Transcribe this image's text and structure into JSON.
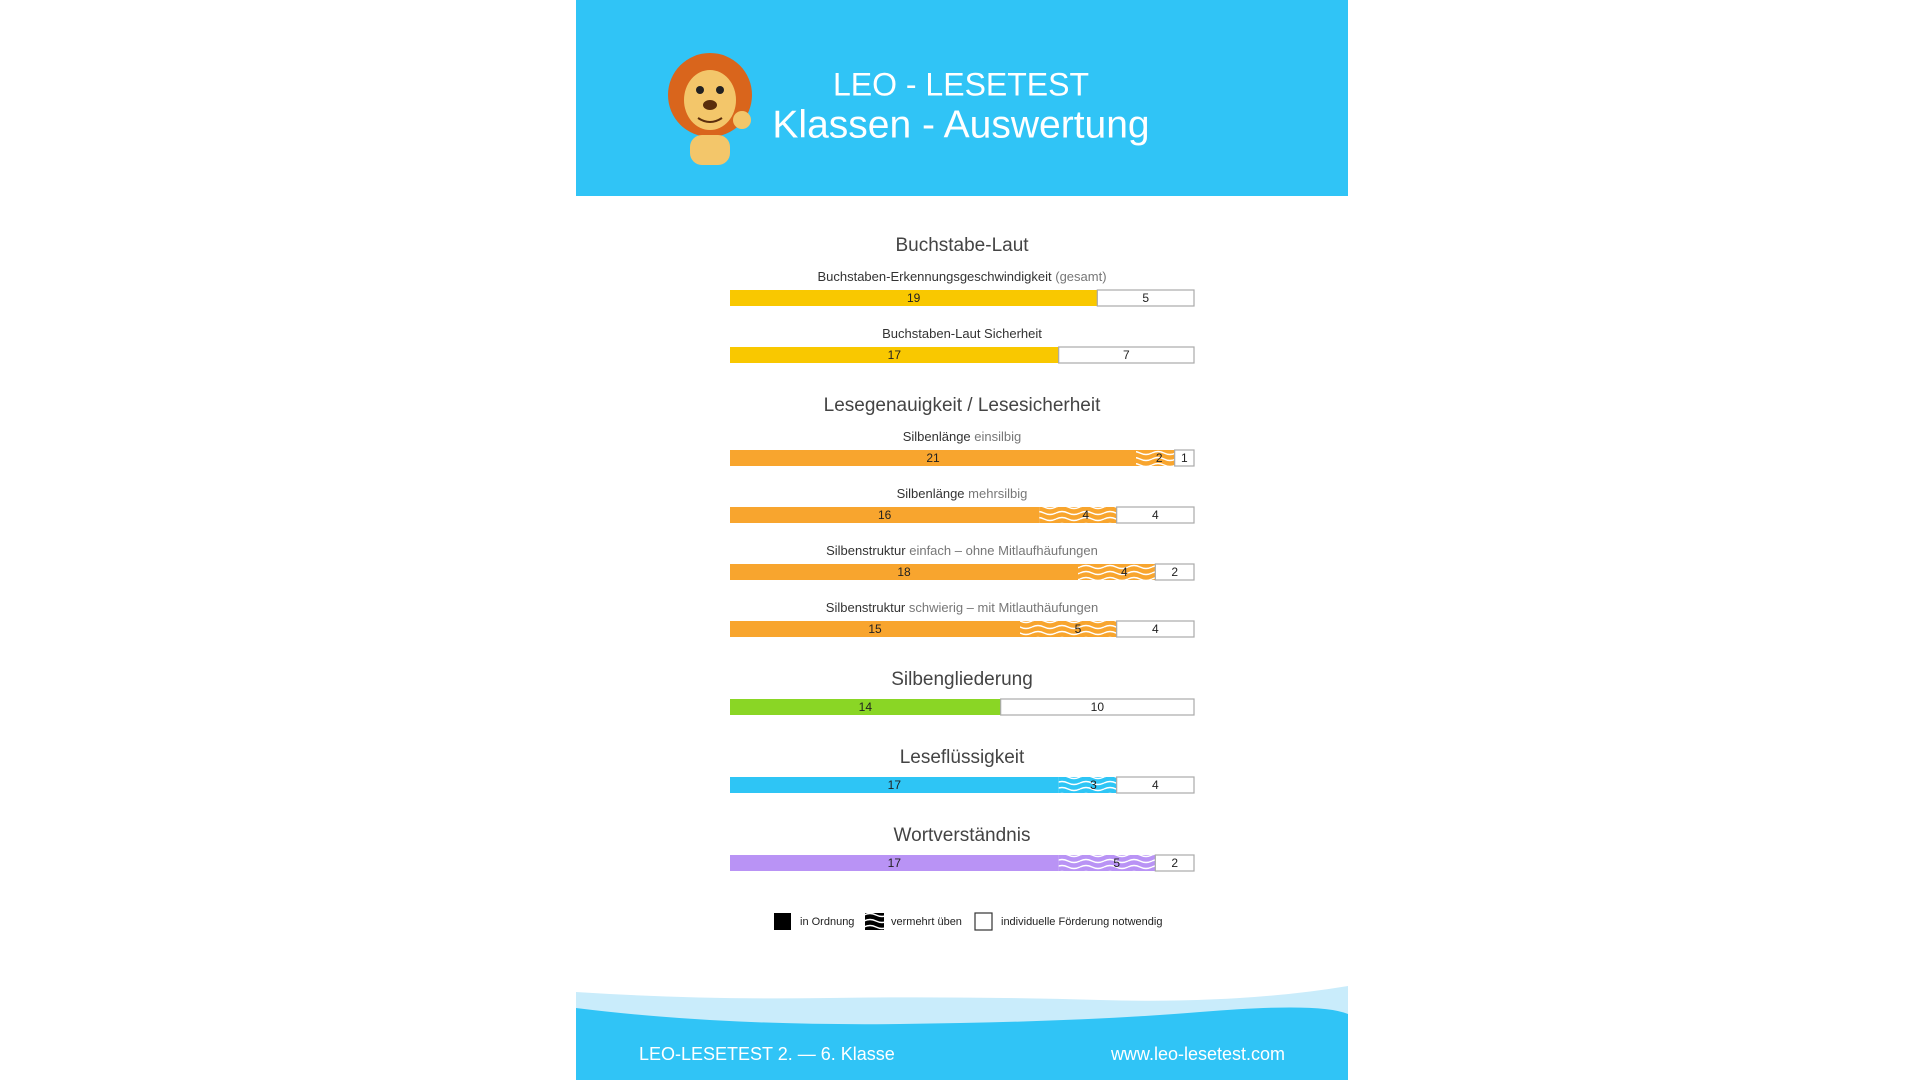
{
  "header": {
    "line1": "LEO - LESETEST",
    "line2": "Klassen - Auswertung"
  },
  "sections": [
    {
      "title": "Buchstabe-Laut",
      "color": "#f9c800",
      "items": [
        {
          "label": "Buchstaben-Erkennungsgeschwindigkeit",
          "note": "(gesamt)",
          "ok": 19,
          "support": 5
        },
        {
          "label": "Buchstaben-Laut Sicherheit",
          "ok": 17,
          "support": 7
        }
      ]
    },
    {
      "title": "Lesegenauigkeit / Lesesicherheit",
      "color": "#f8a52e",
      "items": [
        {
          "label": "Silbenlänge",
          "note": "einsilbig",
          "ok": 21,
          "practice": 2,
          "support": 1
        },
        {
          "label": "Silbenlänge",
          "note": "mehrsilbig",
          "ok": 16,
          "practice": 4,
          "support": 4
        },
        {
          "label": "Silbenstruktur",
          "note": "einfach – ohne Mitlaufhäufungen",
          "ok": 18,
          "practice": 4,
          "support": 2
        },
        {
          "label": "Silbenstruktur",
          "note": "schwierig – mit Mitlauthäufungen",
          "ok": 15,
          "practice": 5,
          "support": 4
        }
      ]
    },
    {
      "title": "Silbengliederung",
      "color": "#8ad625",
      "items": [
        {
          "ok": 14,
          "support": 10
        }
      ]
    },
    {
      "title": "Leseflüssigkeit",
      "color": "#2ec5f5",
      "items": [
        {
          "ok": 17,
          "practice": 3,
          "support": 4
        }
      ]
    },
    {
      "title": "Wortverständnis",
      "color": "#b993f5",
      "items": [
        {
          "ok": 17,
          "practice": 5,
          "support": 2
        }
      ]
    }
  ],
  "legend": [
    "in Ordnung",
    "vermehrt üben",
    "individuelle Förderung notwendig"
  ],
  "footer": {
    "left": "LEO-LESETEST 2. — 6. Klasse",
    "right": "www.leo-lesetest.com"
  }
}
